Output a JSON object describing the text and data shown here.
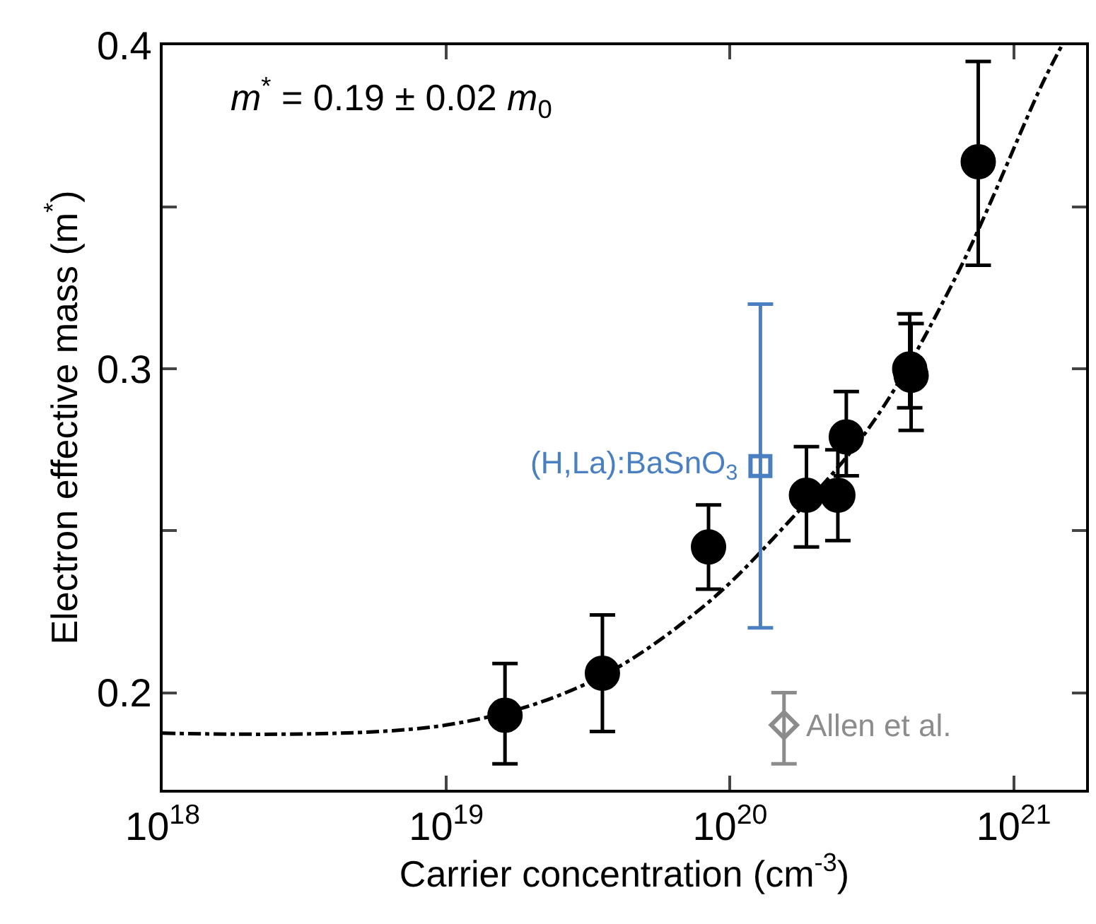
{
  "chart_data": {
    "type": "scatter",
    "xlabel": "Carrier concentration (cm$^{-3}$)",
    "ylabel": "Electron effective mass (m$^{*}$)",
    "log": "x",
    "xlim": [
      1e+18,
      1.8e+21
    ],
    "ylim": [
      0.17,
      0.4
    ],
    "xticks": [
      {
        "value": 1e+18,
        "label": "10$^{18}$"
      },
      {
        "value": 1e+19,
        "label": "10$^{19}$"
      },
      {
        "value": 1e+20,
        "label": "10$^{20}$"
      },
      {
        "value": 1e+21,
        "label": "10$^{21}$"
      }
    ],
    "yticks": [
      0.2,
      {
        "value": 0.25,
        "label": null
      },
      0.3,
      {
        "value": 0.35,
        "label": null
      },
      0.4
    ],
    "grid": false,
    "legend": false,
    "annotations": [
      "m$^{*}$ = 0.19 ± 0.02 m$_{0}$"
    ],
    "series": [
      {
        "color": "#000000",
        "marker": "circle",
        "x": [
          1.61e+19,
          3.55e+19,
          8.4e+19,
          1.86e+20,
          2.4e+20,
          2.57e+20,
          4.3e+20,
          4.35e+20,
          7.5e+20
        ],
        "values": [
          0.193,
          0.206,
          0.245,
          0.261,
          0.261,
          0.279,
          0.3,
          0.298,
          0.364
        ],
        "errors": [
          [
            0.178,
            0.209
          ],
          [
            0.188,
            0.224
          ],
          [
            0.232,
            0.258
          ],
          [
            0.245,
            0.276
          ],
          [
            0.247,
            0.275
          ],
          [
            0.267,
            0.293
          ],
          [
            0.288,
            0.317
          ],
          [
            0.281,
            0.314
          ],
          [
            0.332,
            0.395
          ]
        ]
      },
      {
        "type": "line",
        "color": "#000000",
        "marker": "none",
        "line_style": "dashdot",
        "x": [
          1e+18,
          1e+19,
          3.16e+19,
          7.9e+19,
          1.58e+20,
          3.16e+20,
          6.3e+20,
          1.26e+21,
          1.48e+21
        ],
        "values": [
          0.1875,
          0.19,
          0.203,
          0.226,
          0.252,
          0.283,
          0.329,
          0.388,
          0.4
        ]
      },
      {
        "name": "(H,La):BaSnO$_{3}$",
        "color": "#4a7fc1",
        "marker": "square-open",
        "x": [
          1.28e+20
        ],
        "values": [
          0.27
        ],
        "errors": [
          [
            0.22,
            0.32
          ]
        ]
      },
      {
        "name": "Allen et al.",
        "color": "#8c8c8c",
        "marker": "diamond-open",
        "x": [
          1.55e+20
        ],
        "values": [
          0.19
        ],
        "errors": [
          [
            0.178,
            0.2
          ]
        ]
      }
    ]
  }
}
